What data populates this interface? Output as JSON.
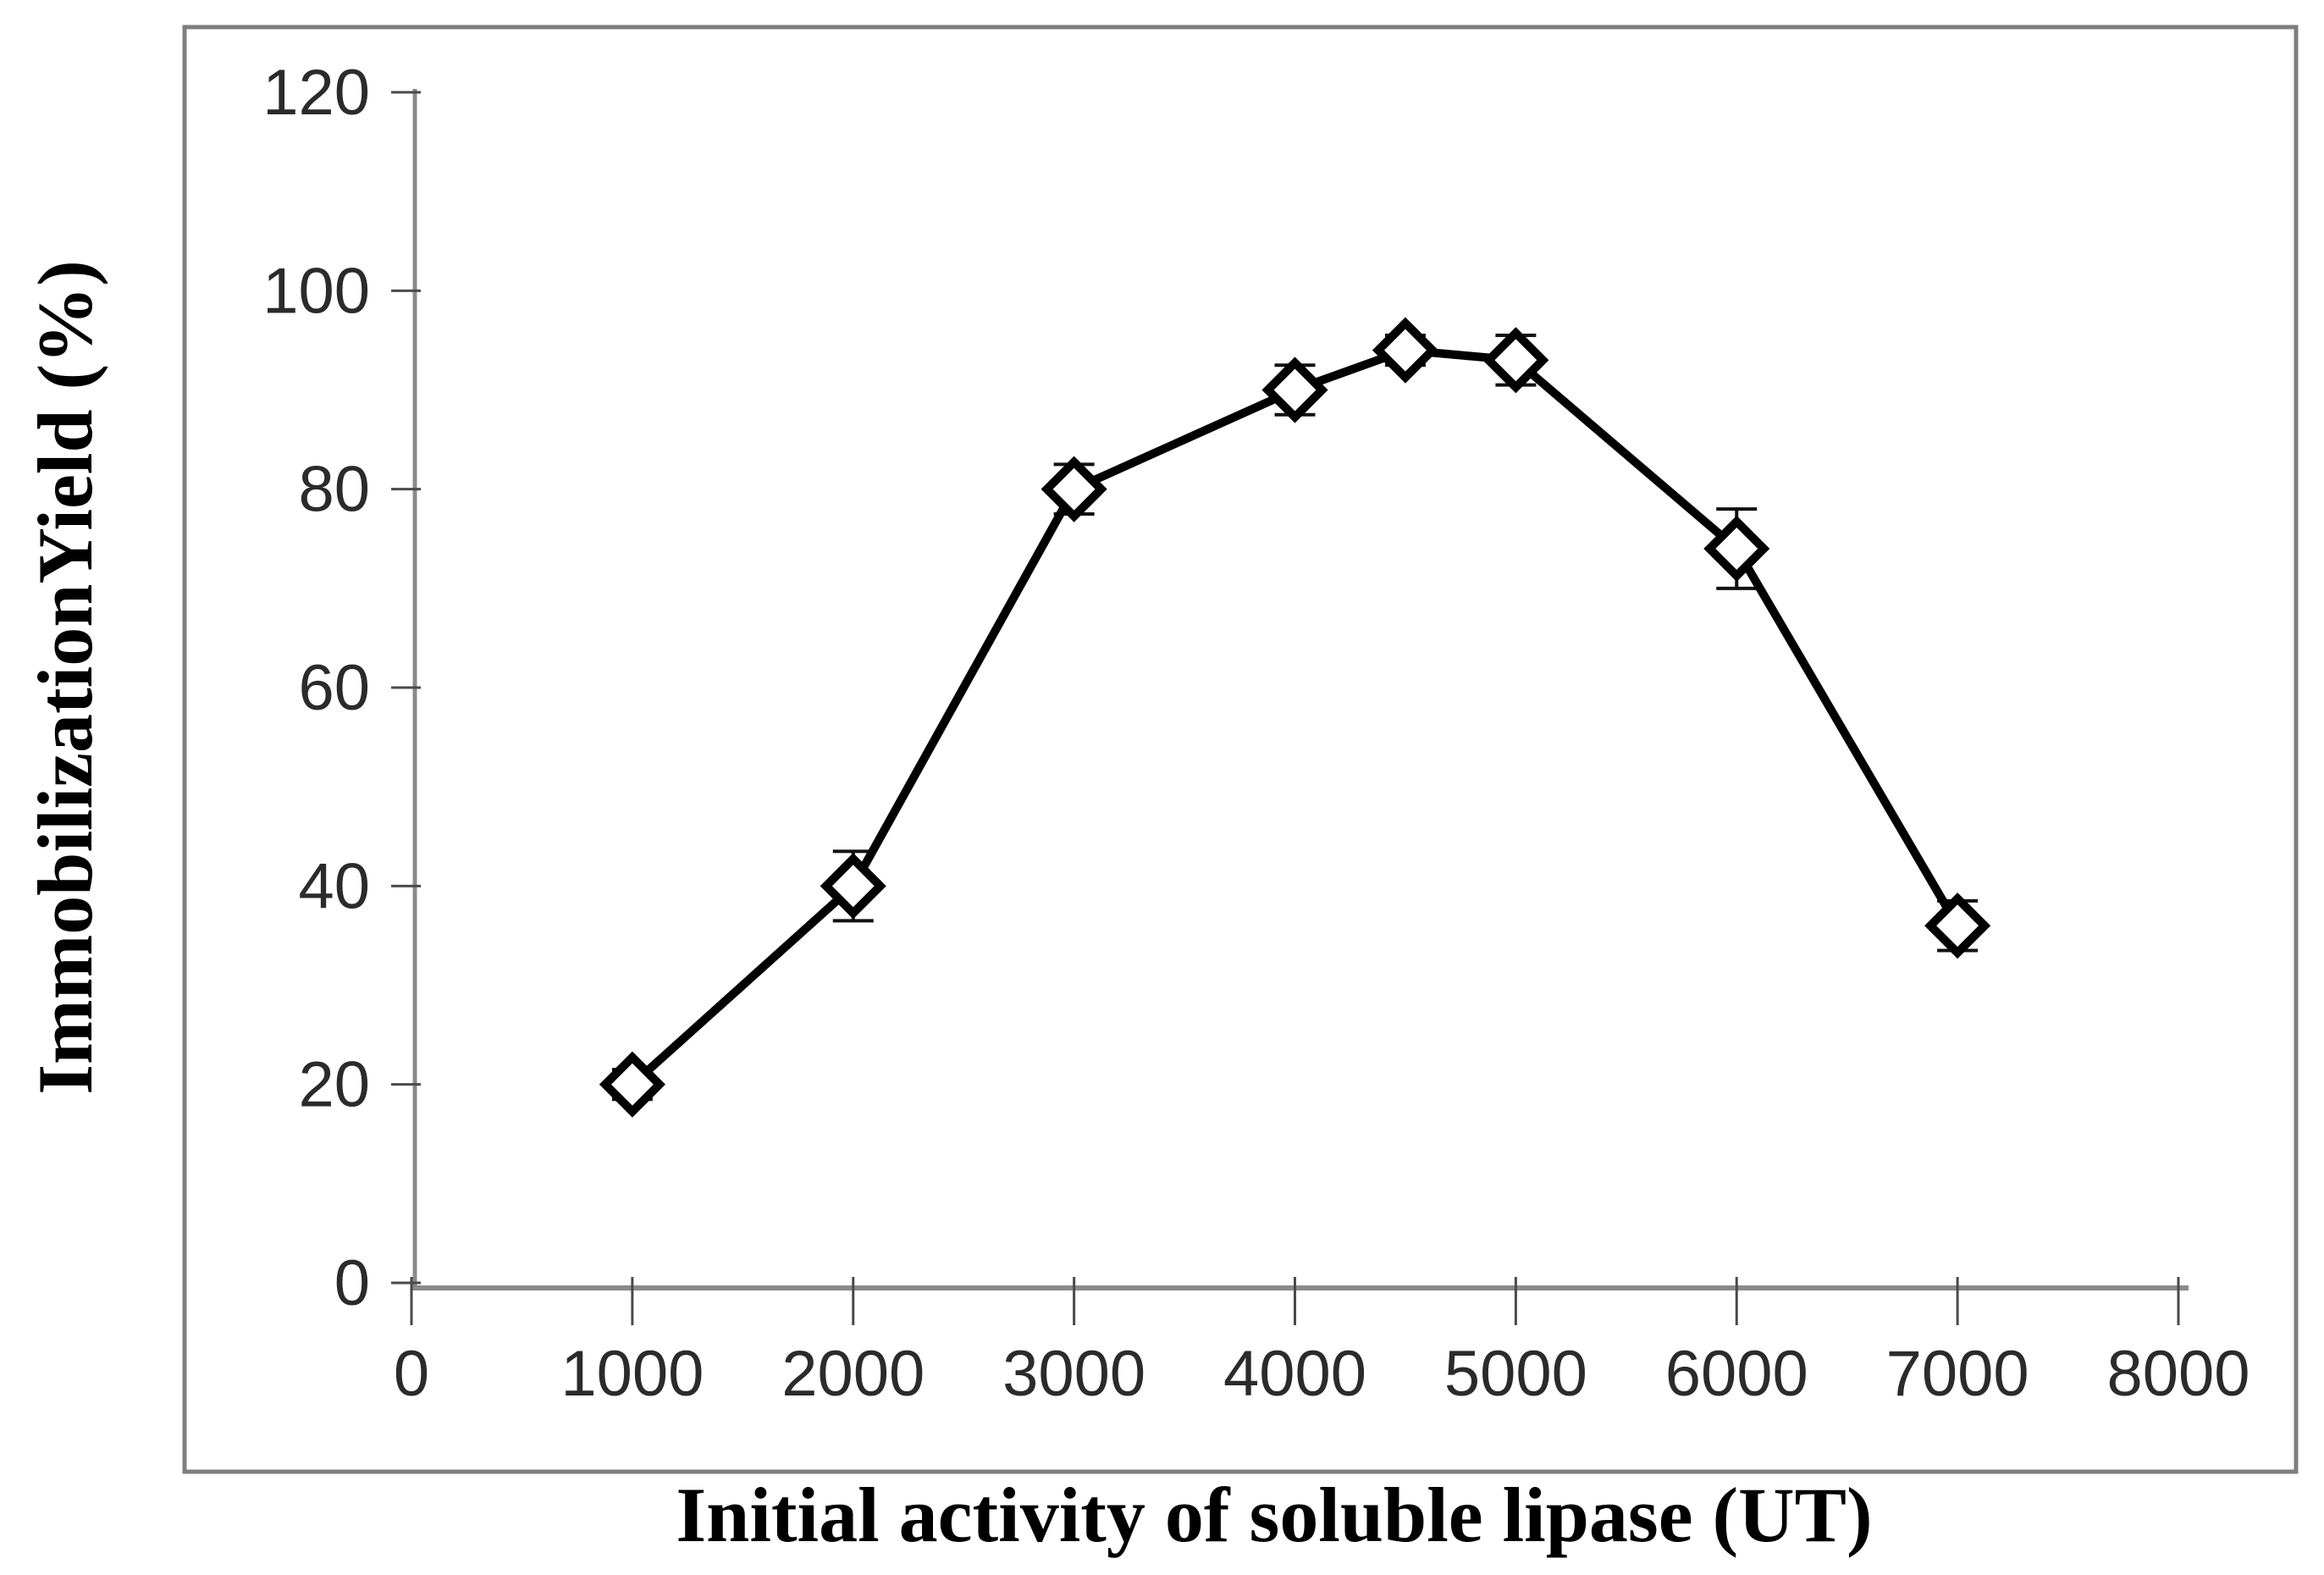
{
  "figure": {
    "background": "#ffffff",
    "frame_color": "#7e7e7e",
    "axis_color": "#8a8a8a",
    "tick_color": "#4a4a4a",
    "tick_label_color": "#2b2b2b",
    "title_color": "#000000",
    "series_color": "#000000",
    "marker_fill": "#ffffff",
    "error_bar_color": "#111111"
  },
  "chart_data": {
    "type": "line",
    "title": "",
    "xlabel": "Initial activity of soluble lipase (UT)",
    "ylabel": "ImmobilizationYield (%)",
    "x": [
      1000,
      2000,
      3000,
      4000,
      4500,
      5000,
      6000,
      7000
    ],
    "y": [
      20,
      40,
      80,
      90,
      94,
      93,
      74,
      36
    ],
    "y_err": [
      1.5,
      3.5,
      2.5,
      2.5,
      1.5,
      2.5,
      4,
      2.5
    ],
    "xlim": [
      0,
      8000
    ],
    "ylim": [
      0,
      120
    ],
    "x_ticks": [
      0,
      1000,
      2000,
      3000,
      4000,
      5000,
      6000,
      7000,
      8000
    ],
    "y_ticks": [
      0,
      20,
      40,
      60,
      80,
      100,
      120
    ],
    "grid": false,
    "legend": "none",
    "marker": "open-diamond",
    "series_name": "Immobilization yield"
  }
}
